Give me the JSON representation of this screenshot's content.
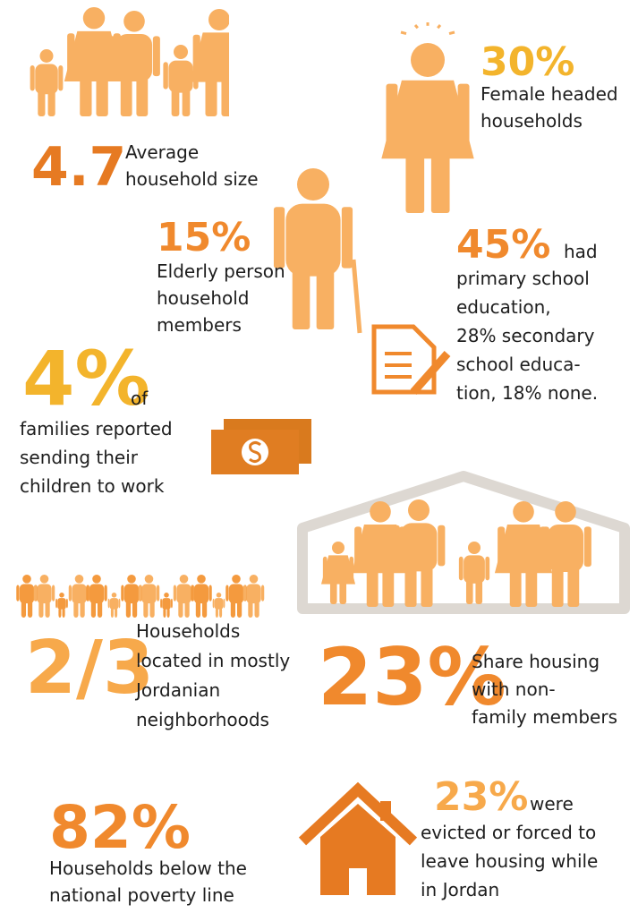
{
  "stats": [
    {
      "number": "4.7",
      "lines": [
        "Average",
        "household size"
      ]
    },
    {
      "number": "30%",
      "lines": [
        "Female headed",
        "households"
      ]
    },
    {
      "number": "15%",
      "lines": [
        "Elderly person",
        "household",
        "members"
      ]
    },
    {
      "number": "45%",
      "suffix": "had",
      "lines": [
        "primary school",
        "education,",
        "28% secondary",
        "school educa-",
        "tion, 18% none."
      ]
    },
    {
      "number": "4%",
      "suffix": "of",
      "lines": [
        "families reported",
        "sending their",
        "children to work"
      ]
    },
    {
      "number": "2/3",
      "lines": [
        "Households",
        "located in mostly",
        "Jordanian",
        "neighborhoods"
      ]
    },
    {
      "number": "23%",
      "lines": [
        "Share housing",
        "with non-",
        "family members"
      ]
    },
    {
      "number": "82%",
      "lines": [
        "Households below the",
        "national poverty line"
      ]
    },
    {
      "number": "23%",
      "suffix": "were",
      "lines": [
        "evicted or forced to",
        "leave housing while",
        "in Jordan"
      ]
    }
  ]
}
